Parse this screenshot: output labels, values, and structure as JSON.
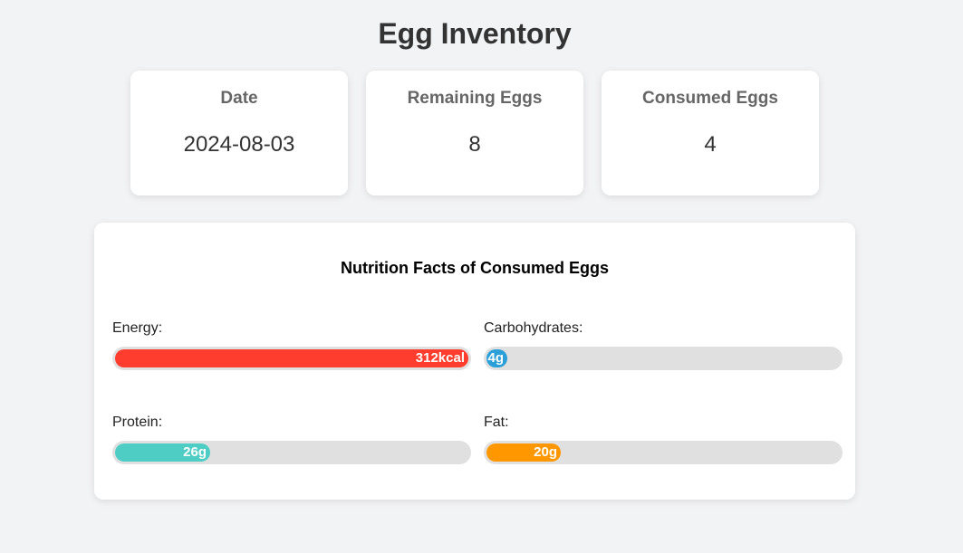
{
  "header": {
    "title": "Egg Inventory"
  },
  "cards": [
    {
      "label": "Date",
      "value": "2024-08-03"
    },
    {
      "label": "Remaining Eggs",
      "value": "8"
    },
    {
      "label": "Consumed Eggs",
      "value": "4"
    }
  ],
  "nutrition": {
    "title": "Nutrition Facts of Consumed Eggs",
    "items": [
      {
        "label": "Energy:",
        "value_text": "312kcal",
        "fill_percent": 100,
        "color": "#ff3d2e"
      },
      {
        "label": "Carbohydrates:",
        "value_text": "4g",
        "fill_percent": 6,
        "color": "#2a9fd8"
      },
      {
        "label": "Protein:",
        "value_text": "26g",
        "fill_percent": 27,
        "color": "#4ecdc4"
      },
      {
        "label": "Fat:",
        "value_text": "20g",
        "fill_percent": 21,
        "color": "#ff9800"
      }
    ]
  }
}
